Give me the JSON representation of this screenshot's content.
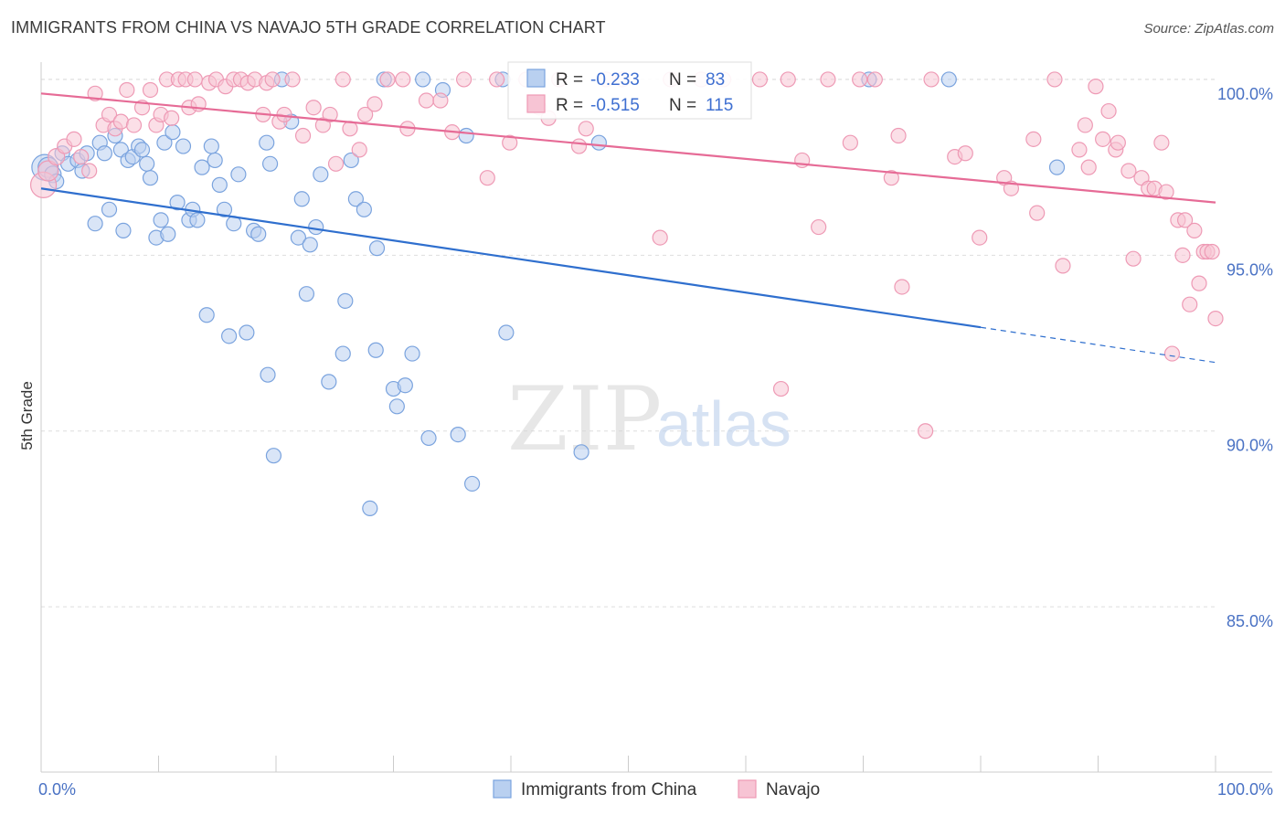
{
  "title": "IMMIGRANTS FROM CHINA VS NAVAJO 5TH GRADE CORRELATION CHART",
  "source": "Source: ZipAtlas.com",
  "watermark": {
    "zip": "ZIP",
    "atlas": "atlas"
  },
  "colors": {
    "blue_fill": "#b9d0f0",
    "blue_stroke": "#7aa3de",
    "blue_line": "#2f6fce",
    "pink_fill": "#f7c4d4",
    "pink_stroke": "#ee9ab5",
    "pink_line": "#e66b96",
    "tick_text": "#4a72c4",
    "grid": "#dddddd"
  },
  "legend_box": {
    "rows": [
      {
        "r_label": "R = ",
        "r_value": "-0.233",
        "n_label": "N = ",
        "n_value": "83",
        "series": "blue"
      },
      {
        "r_label": "R = ",
        "r_value": "-0.515",
        "n_label": "N = ",
        "n_value": "115",
        "series": "pink"
      }
    ]
  },
  "chart_data": {
    "type": "scatter",
    "title": "IMMIGRANTS FROM CHINA VS NAVAJO 5TH GRADE CORRELATION CHART",
    "xlabel": "",
    "ylabel": "5th Grade",
    "xlim": [
      0,
      100
    ],
    "ylim": [
      80.3,
      100.7
    ],
    "x_tick_labels": [
      "0.0%",
      "100.0%"
    ],
    "y_ticks": [
      85,
      90,
      95,
      100
    ],
    "y_tick_labels": [
      "85.0%",
      "90.0%",
      "95.0%",
      "100.0%"
    ],
    "grid": true,
    "legend_position": "bottom",
    "series": [
      {
        "name": "Immigrants from China",
        "color_key": "blue",
        "R": -0.233,
        "N": 83,
        "trend": {
          "x0": 0,
          "y0": 96.9,
          "x1": 80,
          "y1": 92.95,
          "x_dash_end": 100,
          "y_dash_end": 91.95
        },
        "points": [
          [
            0.3,
            97.5,
            14
          ],
          [
            0.6,
            97.5,
            11
          ],
          [
            1.0,
            97.3,
            9
          ],
          [
            1.3,
            97.1,
            8
          ],
          [
            1.8,
            97.9,
            8
          ],
          [
            2.3,
            97.6,
            8
          ],
          [
            3.1,
            97.7,
            8
          ],
          [
            3.5,
            97.4,
            8
          ],
          [
            3.9,
            97.9,
            8
          ],
          [
            4.6,
            95.9,
            8
          ],
          [
            5.0,
            98.2,
            8
          ],
          [
            5.4,
            97.9,
            8
          ],
          [
            5.8,
            96.3,
            8
          ],
          [
            6.3,
            98.4,
            8
          ],
          [
            6.8,
            98.0,
            8
          ],
          [
            7.0,
            95.7,
            8
          ],
          [
            7.4,
            97.7,
            8
          ],
          [
            7.8,
            97.8,
            8
          ],
          [
            8.3,
            98.1,
            8
          ],
          [
            8.6,
            98.0,
            8
          ],
          [
            9.0,
            97.6,
            8
          ],
          [
            9.3,
            97.2,
            8
          ],
          [
            9.8,
            95.5,
            8
          ],
          [
            10.2,
            96.0,
            8
          ],
          [
            10.5,
            98.2,
            8
          ],
          [
            10.8,
            95.6,
            8
          ],
          [
            11.2,
            98.5,
            8
          ],
          [
            11.6,
            96.5,
            8
          ],
          [
            12.1,
            98.1,
            8
          ],
          [
            12.6,
            96.0,
            8
          ],
          [
            12.9,
            96.3,
            8
          ],
          [
            13.3,
            96.0,
            8
          ],
          [
            13.7,
            97.5,
            8
          ],
          [
            14.1,
            93.3,
            8
          ],
          [
            14.5,
            98.1,
            8
          ],
          [
            14.8,
            97.7,
            8
          ],
          [
            15.2,
            97.0,
            8
          ],
          [
            15.6,
            96.3,
            8
          ],
          [
            16.0,
            92.7,
            8
          ],
          [
            16.4,
            95.9,
            8
          ],
          [
            16.8,
            97.3,
            8
          ],
          [
            17.5,
            92.8,
            8
          ],
          [
            18.1,
            95.7,
            8
          ],
          [
            18.5,
            95.6,
            8
          ],
          [
            19.2,
            98.2,
            8
          ],
          [
            19.3,
            91.6,
            8
          ],
          [
            19.5,
            97.6,
            8
          ],
          [
            19.8,
            89.3,
            8
          ],
          [
            20.5,
            100.0,
            8
          ],
          [
            21.3,
            98.8,
            8
          ],
          [
            21.9,
            95.5,
            8
          ],
          [
            22.2,
            96.6,
            8
          ],
          [
            22.6,
            93.9,
            8
          ],
          [
            22.9,
            95.3,
            8
          ],
          [
            23.4,
            95.8,
            8
          ],
          [
            23.8,
            97.3,
            8
          ],
          [
            24.5,
            91.4,
            8
          ],
          [
            25.7,
            92.2,
            8
          ],
          [
            25.9,
            93.7,
            8
          ],
          [
            26.4,
            97.7,
            8
          ],
          [
            26.8,
            96.6,
            8
          ],
          [
            27.5,
            96.3,
            8
          ],
          [
            28.0,
            87.8,
            8
          ],
          [
            28.5,
            92.3,
            8
          ],
          [
            28.6,
            95.2,
            8
          ],
          [
            29.2,
            100.0,
            8
          ],
          [
            30.0,
            91.2,
            8
          ],
          [
            30.3,
            90.7,
            8
          ],
          [
            31.0,
            91.3,
            8
          ],
          [
            31.6,
            92.2,
            8
          ],
          [
            32.5,
            100.0,
            8
          ],
          [
            33.0,
            89.8,
            8
          ],
          [
            34.2,
            99.7,
            8
          ],
          [
            35.5,
            89.9,
            8
          ],
          [
            36.2,
            98.4,
            8
          ],
          [
            36.7,
            88.5,
            8
          ],
          [
            39.3,
            100.0,
            8
          ],
          [
            39.6,
            92.8,
            8
          ],
          [
            46.0,
            89.4,
            8
          ],
          [
            47.5,
            98.2,
            8
          ],
          [
            70.5,
            100.0,
            8
          ],
          [
            77.3,
            100.0,
            8
          ],
          [
            86.5,
            97.5,
            8
          ]
        ]
      },
      {
        "name": "Navajo",
        "color_key": "pink",
        "R": -0.515,
        "N": 115,
        "trend": {
          "x0": 0,
          "y0": 99.6,
          "x1": 100,
          "y1": 96.5
        },
        "points": [
          [
            0.2,
            97.0,
            14
          ],
          [
            0.6,
            97.4,
            11
          ],
          [
            1.3,
            97.8,
            9
          ],
          [
            2.0,
            98.1,
            8
          ],
          [
            2.8,
            98.3,
            8
          ],
          [
            3.4,
            97.8,
            8
          ],
          [
            4.1,
            97.4,
            8
          ],
          [
            4.6,
            99.6,
            8
          ],
          [
            5.3,
            98.7,
            8
          ],
          [
            5.8,
            99.0,
            8
          ],
          [
            6.3,
            98.6,
            8
          ],
          [
            6.8,
            98.8,
            8
          ],
          [
            7.3,
            99.7,
            8
          ],
          [
            7.9,
            98.7,
            8
          ],
          [
            8.6,
            99.2,
            8
          ],
          [
            9.3,
            99.7,
            8
          ],
          [
            9.8,
            98.7,
            8
          ],
          [
            10.2,
            99.0,
            8
          ],
          [
            10.7,
            100.0,
            8
          ],
          [
            11.1,
            98.9,
            8
          ],
          [
            11.7,
            100.0,
            8
          ],
          [
            12.3,
            100.0,
            8
          ],
          [
            12.6,
            99.2,
            8
          ],
          [
            13.1,
            100.0,
            8
          ],
          [
            13.4,
            99.3,
            8
          ],
          [
            14.3,
            99.9,
            8
          ],
          [
            14.9,
            100.0,
            8
          ],
          [
            15.7,
            99.8,
            8
          ],
          [
            16.4,
            100.0,
            8
          ],
          [
            17.0,
            100.0,
            8
          ],
          [
            17.6,
            99.9,
            8
          ],
          [
            18.2,
            100.0,
            8
          ],
          [
            18.9,
            99.0,
            8
          ],
          [
            19.2,
            99.9,
            8
          ],
          [
            19.7,
            100.0,
            8
          ],
          [
            20.3,
            98.8,
            8
          ],
          [
            20.7,
            99.0,
            8
          ],
          [
            21.4,
            100.0,
            8
          ],
          [
            22.3,
            98.4,
            8
          ],
          [
            23.2,
            99.2,
            8
          ],
          [
            24.0,
            98.7,
            8
          ],
          [
            24.6,
            99.0,
            8
          ],
          [
            25.1,
            97.6,
            8
          ],
          [
            25.7,
            100.0,
            8
          ],
          [
            26.3,
            98.6,
            8
          ],
          [
            27.1,
            98.0,
            8
          ],
          [
            27.6,
            99.0,
            8
          ],
          [
            28.4,
            99.3,
            8
          ],
          [
            29.5,
            100.0,
            8
          ],
          [
            30.8,
            100.0,
            8
          ],
          [
            31.2,
            98.6,
            8
          ],
          [
            32.8,
            99.4,
            8
          ],
          [
            34.0,
            99.4,
            8
          ],
          [
            35.0,
            98.5,
            8
          ],
          [
            36.0,
            100.0,
            8
          ],
          [
            38.0,
            97.2,
            8
          ],
          [
            38.8,
            100.0,
            8
          ],
          [
            39.9,
            98.2,
            8
          ],
          [
            41.3,
            100.0,
            8
          ],
          [
            42.4,
            99.2,
            8
          ],
          [
            43.2,
            98.9,
            8
          ],
          [
            44.1,
            100.0,
            8
          ],
          [
            45.8,
            98.1,
            8
          ],
          [
            46.4,
            98.6,
            8
          ],
          [
            48.1,
            100.0,
            8
          ],
          [
            49.5,
            100.0,
            8
          ],
          [
            52.7,
            95.5,
            8
          ],
          [
            53.6,
            100.0,
            8
          ],
          [
            56.2,
            100.0,
            8
          ],
          [
            58.1,
            100.0,
            8
          ],
          [
            61.2,
            100.0,
            8
          ],
          [
            63.0,
            91.2,
            8
          ],
          [
            63.6,
            100.0,
            8
          ],
          [
            64.8,
            97.7,
            8
          ],
          [
            66.2,
            95.8,
            8
          ],
          [
            67.0,
            100.0,
            8
          ],
          [
            68.9,
            98.2,
            8
          ],
          [
            69.7,
            100.0,
            8
          ],
          [
            71.0,
            100.0,
            8
          ],
          [
            72.4,
            97.2,
            8
          ],
          [
            73.0,
            98.4,
            8
          ],
          [
            73.3,
            94.1,
            8
          ],
          [
            75.3,
            90.0,
            8
          ],
          [
            75.8,
            100.0,
            8
          ],
          [
            77.8,
            97.8,
            8
          ],
          [
            78.7,
            97.9,
            8
          ],
          [
            79.9,
            95.5,
            8
          ],
          [
            82.0,
            97.2,
            8
          ],
          [
            82.6,
            96.9,
            8
          ],
          [
            84.5,
            98.3,
            8
          ],
          [
            84.8,
            96.2,
            8
          ],
          [
            86.3,
            100.0,
            8
          ],
          [
            87.0,
            94.7,
            8
          ],
          [
            88.4,
            98.0,
            8
          ],
          [
            88.9,
            98.7,
            8
          ],
          [
            89.2,
            97.5,
            8
          ],
          [
            89.8,
            99.8,
            8
          ],
          [
            90.4,
            98.3,
            8
          ],
          [
            90.9,
            99.1,
            8
          ],
          [
            91.5,
            98.0,
            8
          ],
          [
            91.7,
            98.2,
            8
          ],
          [
            92.6,
            97.4,
            8
          ],
          [
            93.0,
            94.9,
            8
          ],
          [
            93.7,
            97.2,
            8
          ],
          [
            94.3,
            96.9,
            8
          ],
          [
            94.8,
            96.9,
            8
          ],
          [
            95.4,
            98.2,
            8
          ],
          [
            95.8,
            96.8,
            8
          ],
          [
            96.3,
            92.2,
            8
          ],
          [
            96.8,
            96.0,
            8
          ],
          [
            97.2,
            95.0,
            8
          ],
          [
            97.4,
            96.0,
            8
          ],
          [
            97.8,
            93.6,
            8
          ],
          [
            98.2,
            95.7,
            8
          ],
          [
            98.6,
            94.2,
            8
          ],
          [
            99.0,
            95.1,
            8
          ],
          [
            99.3,
            95.1,
            8
          ],
          [
            99.7,
            95.1,
            8
          ],
          [
            100.0,
            93.2,
            8
          ]
        ]
      }
    ]
  }
}
